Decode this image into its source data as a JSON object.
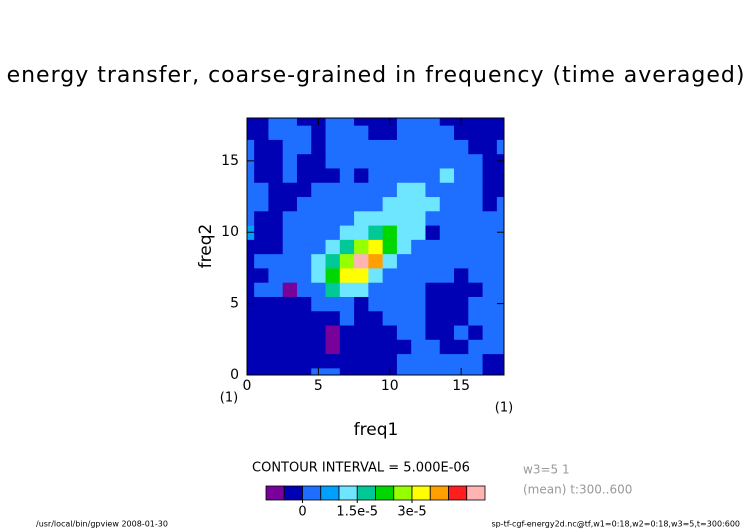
{
  "chart_data": {
    "type": "contour",
    "title": "energy transfer, coarse-grained in frequency (time averaged)",
    "xlabel": "freq1",
    "ylabel": "freq2",
    "xunit": "(1)",
    "yunit": "(1)",
    "x": [
      0,
      1,
      2,
      3,
      4,
      5,
      6,
      7,
      8,
      9,
      10,
      11,
      12,
      13,
      14,
      15,
      16,
      17,
      18
    ],
    "y": [
      0,
      1,
      2,
      3,
      4,
      5,
      6,
      7,
      8,
      9,
      10,
      11,
      12,
      13,
      14,
      15,
      16,
      17,
      18
    ],
    "z": [
      [
        -2e-06,
        -2e-06,
        -2e-06,
        -2e-06,
        -2e-06,
        2e-06,
        2e-06,
        -2e-06,
        -2e-06,
        -2e-06,
        -2e-06,
        2e-06,
        2e-06,
        2e-06,
        2e-06,
        2e-06,
        2e-06,
        -2e-06,
        -2e-06
      ],
      [
        -2e-06,
        -2e-06,
        -2e-06,
        -2e-06,
        -2e-06,
        -2e-06,
        -2e-06,
        -2e-06,
        -2e-06,
        -2e-06,
        -2e-06,
        2e-06,
        2e-06,
        2e-06,
        2e-06,
        2e-06,
        2e-06,
        -2e-06,
        -2e-06
      ],
      [
        -2e-06,
        -2e-06,
        -2e-06,
        -2e-06,
        -2e-06,
        -2e-06,
        -7e-06,
        -2e-06,
        -2e-06,
        -2e-06,
        -2e-06,
        -2e-06,
        2e-06,
        2e-06,
        -2e-06,
        -2e-06,
        2e-06,
        2e-06,
        2e-06
      ],
      [
        -2e-06,
        -2e-06,
        -2e-06,
        -2e-06,
        -2e-06,
        -2e-06,
        -7e-06,
        -2e-06,
        -2e-06,
        -2e-06,
        -2e-06,
        2e-06,
        2e-06,
        -2e-06,
        -2e-06,
        2e-06,
        -2e-06,
        2e-06,
        2e-06
      ],
      [
        -2e-06,
        -2e-06,
        -2e-06,
        -2e-06,
        -2e-06,
        -2e-06,
        -2e-06,
        2e-06,
        -2e-06,
        -2e-06,
        2e-06,
        2e-06,
        2e-06,
        -2e-06,
        -2e-06,
        -2e-06,
        2e-06,
        2e-06,
        2e-06
      ],
      [
        -2e-06,
        -2e-06,
        -2e-06,
        -2e-06,
        -2e-06,
        2e-06,
        2e-06,
        2e-06,
        -2e-06,
        2e-06,
        2e-06,
        2e-06,
        2e-06,
        -2e-06,
        -2e-06,
        -2e-06,
        2e-06,
        2e-06,
        2e-06
      ],
      [
        -2e-06,
        2e-06,
        2e-06,
        -7e-06,
        2e-06,
        2e-06,
        1.7e-05,
        1.2e-05,
        1.2e-05,
        2e-06,
        2e-06,
        2e-06,
        2e-06,
        -2e-06,
        -2e-06,
        -2e-06,
        -2e-06,
        2e-06,
        2e-06
      ],
      [
        -2e-06,
        -2e-06,
        2e-06,
        2e-06,
        2e-06,
        1.2e-05,
        2.2e-05,
        3.2e-05,
        3.2e-05,
        1.2e-05,
        2e-06,
        2e-06,
        2e-06,
        2e-06,
        2e-06,
        -2e-06,
        2e-06,
        2e-06,
        2e-06
      ],
      [
        -2e-06,
        2e-06,
        2e-06,
        2e-06,
        2e-06,
        1.2e-05,
        1.7e-05,
        2.7e-05,
        4.7e-05,
        3.7e-05,
        1.2e-05,
        2e-06,
        2e-06,
        2e-06,
        2e-06,
        2e-06,
        2e-06,
        2e-06,
        2e-06
      ],
      [
        -2e-06,
        -2e-06,
        -2e-06,
        2e-06,
        2e-06,
        2e-06,
        1.2e-05,
        1.7e-05,
        2.7e-05,
        3.2e-05,
        2.2e-05,
        1.2e-05,
        2e-06,
        2e-06,
        2e-06,
        2e-06,
        2e-06,
        2e-06,
        2e-06
      ],
      [
        7e-06,
        -2e-06,
        -2e-06,
        2e-06,
        2e-06,
        2e-06,
        2e-06,
        1.2e-05,
        1.2e-05,
        1.7e-05,
        2.2e-05,
        1.2e-05,
        1.2e-05,
        -2e-06,
        2e-06,
        2e-06,
        2e-06,
        2e-06,
        2e-06
      ],
      [
        2e-06,
        -2e-06,
        -2e-06,
        2e-06,
        2e-06,
        2e-06,
        2e-06,
        2e-06,
        1.2e-05,
        1.2e-05,
        1.2e-05,
        1.2e-05,
        1.2e-05,
        2e-06,
        2e-06,
        2e-06,
        2e-06,
        2e-06,
        2e-06
      ],
      [
        2e-06,
        2e-06,
        -2e-06,
        -2e-06,
        2e-06,
        2e-06,
        2e-06,
        2e-06,
        2e-06,
        2e-06,
        1.2e-05,
        1.2e-05,
        1.2e-05,
        1.2e-05,
        2e-06,
        2e-06,
        2e-06,
        -2e-06,
        2e-06
      ],
      [
        2e-06,
        2e-06,
        -2e-06,
        -2e-06,
        -2e-06,
        2e-06,
        2e-06,
        2e-06,
        2e-06,
        2e-06,
        2e-06,
        1.2e-05,
        1.2e-05,
        2e-06,
        2e-06,
        2e-06,
        2e-06,
        -2e-06,
        -2e-06
      ],
      [
        2e-06,
        -2e-06,
        -2e-06,
        2e-06,
        -2e-06,
        -2e-06,
        -2e-06,
        2e-06,
        -2e-06,
        2e-06,
        2e-06,
        2e-06,
        2e-06,
        2e-06,
        1.2e-05,
        2e-06,
        2e-06,
        -2e-06,
        -2e-06
      ],
      [
        2e-06,
        -2e-06,
        -2e-06,
        2e-06,
        -2e-06,
        -2e-06,
        2e-06,
        2e-06,
        2e-06,
        2e-06,
        2e-06,
        2e-06,
        2e-06,
        2e-06,
        2e-06,
        2e-06,
        2e-06,
        -2e-06,
        -2e-06
      ],
      [
        2e-06,
        -2e-06,
        -2e-06,
        2e-06,
        2e-06,
        -2e-06,
        2e-06,
        2e-06,
        2e-06,
        2e-06,
        2e-06,
        2e-06,
        2e-06,
        2e-06,
        2e-06,
        2e-06,
        -2e-06,
        -2e-06,
        2e-06
      ],
      [
        -2e-06,
        -2e-06,
        2e-06,
        2e-06,
        2e-06,
        -2e-06,
        2e-06,
        2e-06,
        2e-06,
        -2e-06,
        -2e-06,
        2e-06,
        2e-06,
        2e-06,
        2e-06,
        -2e-06,
        -2e-06,
        -2e-06,
        -2e-06
      ],
      [
        -2e-06,
        -2e-06,
        2e-06,
        2e-06,
        -2e-06,
        -2e-06,
        2e-06,
        2e-06,
        -2e-06,
        -2e-06,
        -2e-06,
        2e-06,
        2e-06,
        2e-06,
        -2e-06,
        -2e-06,
        -2e-06,
        -2e-06,
        -2e-06
      ]
    ],
    "xlim": [
      0,
      18
    ],
    "ylim": [
      0,
      18
    ],
    "xticks": [
      0,
      5,
      10,
      15
    ],
    "yticks": [
      0,
      5,
      10,
      15
    ],
    "colorbar": {
      "colors": [
        "#78009b",
        "#0000b4",
        "#1e6eff",
        "#00a0ff",
        "#6ee6ff",
        "#00c896",
        "#00d700",
        "#96ff00",
        "#ffff00",
        "#ffa000",
        "#ff1e1e",
        "#ffb4b4"
      ],
      "levels": [
        -1e-05,
        -5e-06,
        0,
        5e-06,
        1e-05,
        1.5e-05,
        2e-05,
        2.5e-05,
        3e-05,
        3.5e-05,
        4e-05,
        4.5e-05,
        5e-05
      ],
      "ticks": [
        0,
        {
          "value": 1.5e-05,
          "label": "1.5e-5"
        },
        {
          "value": 3e-05,
          "label": "3e-5"
        }
      ]
    },
    "contour_interval": "CONTOUR INTERVAL = 5.000E-06",
    "annotations": [
      "w3=5 1",
      "(mean) t:300..600"
    ],
    "footer_left": "/usr/local/bin/gpview  2008-01-30",
    "footer_right": "sp-tf-cgf-energy2d.nc@tf,w1=0:18,w2=0:18,w3=5,t=300:600"
  }
}
